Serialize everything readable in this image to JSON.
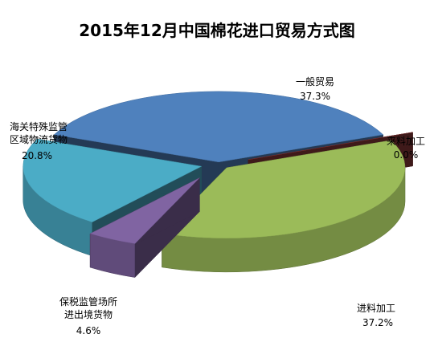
{
  "chart_data": {
    "type": "pie",
    "title": "2015年12月中国棉花进口贸易方式图",
    "categories": [
      "一般贸易",
      "来料加工",
      "进料加工",
      "保税监管场所进出境货物",
      "海关特殊监管区域物流货物"
    ],
    "values": [
      37.3,
      0.0,
      37.2,
      4.6,
      20.8
    ],
    "value_labels": [
      "37.3%",
      "0.0%",
      "37.2%",
      "4.6%",
      "20.8%"
    ],
    "colors": [
      "#4f81bd",
      "#8c3a3a",
      "#9bbb59",
      "#8064a2",
      "#4bacc6"
    ]
  }
}
